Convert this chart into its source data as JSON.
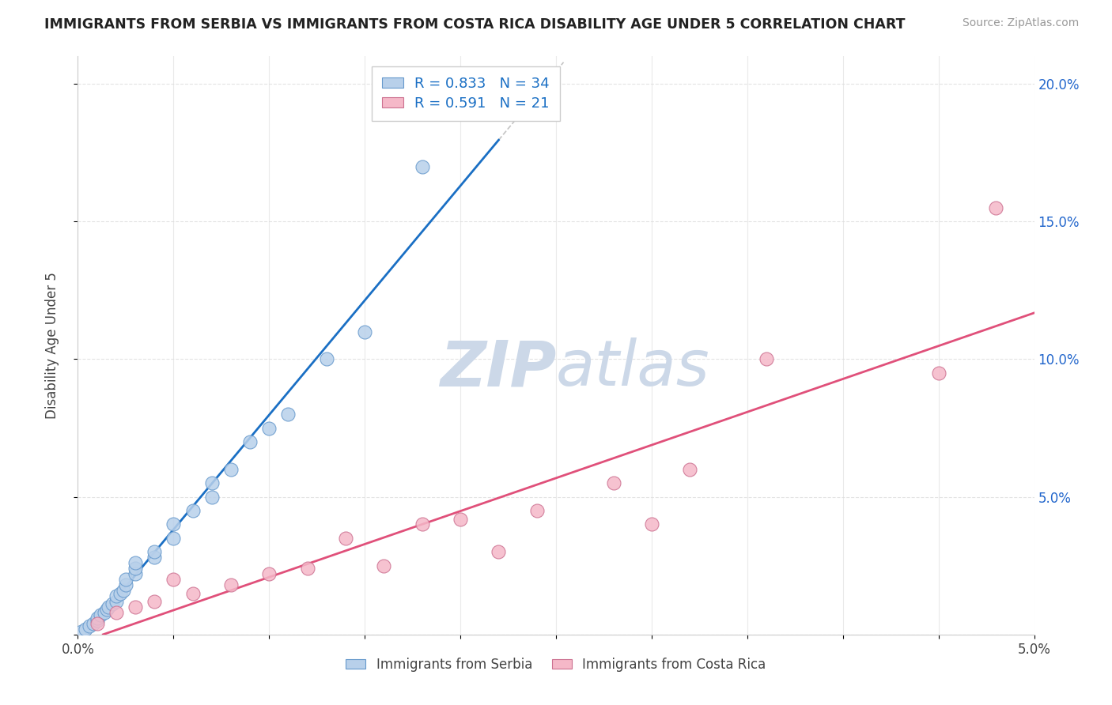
{
  "title": "IMMIGRANTS FROM SERBIA VS IMMIGRANTS FROM COSTA RICA DISABILITY AGE UNDER 5 CORRELATION CHART",
  "source": "Source: ZipAtlas.com",
  "ylabel": "Disability Age Under 5",
  "serbia_label": "Immigrants from Serbia",
  "costa_rica_label": "Immigrants from Costa Rica",
  "R_serbia": 0.833,
  "N_serbia": 34,
  "R_costa_rica": 0.591,
  "N_costa_rica": 21,
  "serbia_color": "#b8d0ea",
  "serbia_edge_color": "#6699cc",
  "serbia_line_color": "#1a6fc4",
  "costa_rica_color": "#f5b8c8",
  "costa_rica_edge_color": "#cc7090",
  "costa_rica_line_color": "#e0507a",
  "watermark_color": "#ccd8e8",
  "xlim": [
    0.0,
    0.05
  ],
  "ylim": [
    0.0,
    0.21
  ],
  "serbia_x": [
    0.0002,
    0.0004,
    0.0006,
    0.0008,
    0.001,
    0.001,
    0.0012,
    0.0014,
    0.0015,
    0.0016,
    0.0018,
    0.002,
    0.002,
    0.0022,
    0.0024,
    0.0025,
    0.0025,
    0.003,
    0.003,
    0.003,
    0.004,
    0.004,
    0.005,
    0.005,
    0.006,
    0.007,
    0.007,
    0.008,
    0.009,
    0.01,
    0.011,
    0.013,
    0.015,
    0.018
  ],
  "serbia_y": [
    0.001,
    0.002,
    0.003,
    0.004,
    0.005,
    0.006,
    0.007,
    0.008,
    0.009,
    0.01,
    0.011,
    0.012,
    0.014,
    0.015,
    0.016,
    0.018,
    0.02,
    0.022,
    0.024,
    0.026,
    0.028,
    0.03,
    0.035,
    0.04,
    0.045,
    0.05,
    0.055,
    0.06,
    0.07,
    0.075,
    0.08,
    0.1,
    0.11,
    0.17
  ],
  "costa_rica_x": [
    0.001,
    0.002,
    0.003,
    0.004,
    0.005,
    0.006,
    0.008,
    0.01,
    0.012,
    0.014,
    0.016,
    0.018,
    0.02,
    0.022,
    0.024,
    0.028,
    0.03,
    0.032,
    0.036,
    0.045,
    0.048
  ],
  "costa_rica_y": [
    0.004,
    0.008,
    0.01,
    0.012,
    0.02,
    0.015,
    0.018,
    0.022,
    0.024,
    0.035,
    0.025,
    0.04,
    0.042,
    0.03,
    0.045,
    0.055,
    0.04,
    0.06,
    0.1,
    0.095,
    0.155
  ]
}
